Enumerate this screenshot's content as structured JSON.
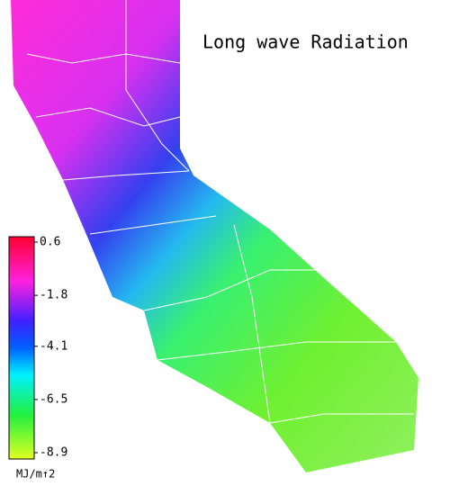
{
  "title": "Long wave Radiation",
  "colorbar": {
    "ticks": [
      0.6,
      -1.8,
      -4.1,
      -6.5,
      -8.9
    ],
    "unit": "MJ/m↑2"
  }
}
